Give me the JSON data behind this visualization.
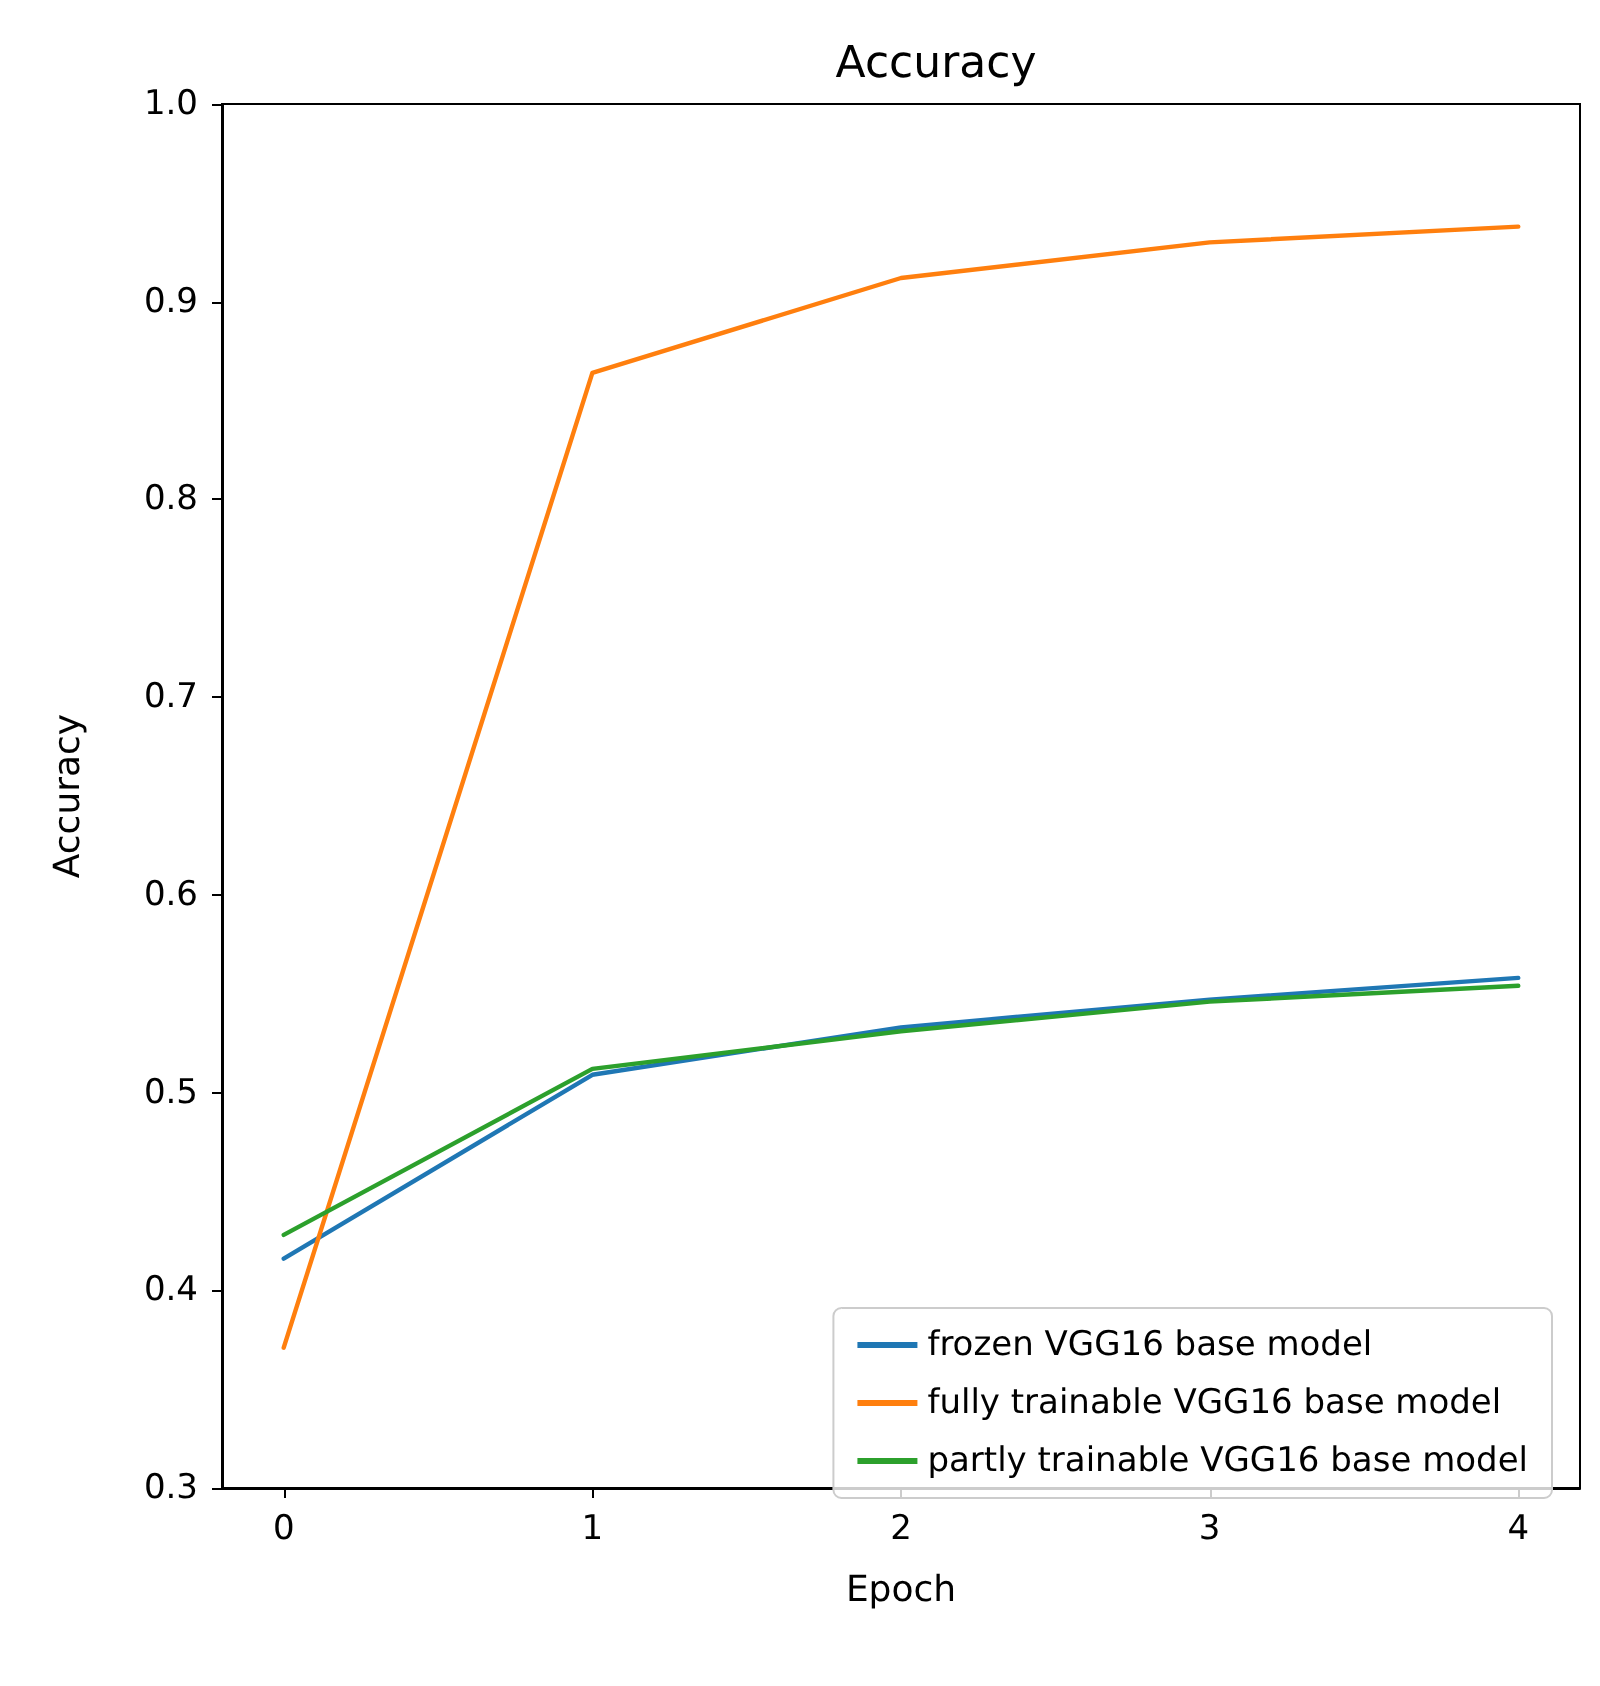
{
  "chart_data": {
    "type": "line",
    "title": "Accuracy",
    "xlabel": "Epoch",
    "ylabel": "Accuracy",
    "x": [
      0,
      1,
      2,
      3,
      4
    ],
    "series": [
      {
        "name": "frozen VGG16 base model",
        "color": "#1f77b4",
        "values": [
          0.416,
          0.509,
          0.533,
          0.547,
          0.558
        ]
      },
      {
        "name": "fully trainable VGG16 base model",
        "color": "#ff7f0e",
        "values": [
          0.371,
          0.864,
          0.912,
          0.93,
          0.938
        ]
      },
      {
        "name": "partly trainable VGG16 base model",
        "color": "#2ca02c",
        "values": [
          0.428,
          0.512,
          0.531,
          0.546,
          0.554
        ]
      }
    ],
    "xlim": [
      -0.2,
      4.2
    ],
    "xticks": [
      0,
      1,
      2,
      3,
      4
    ],
    "ylim": [
      0.3,
      1.0
    ],
    "yticks": [
      0.3,
      0.4,
      0.5,
      0.6,
      0.7,
      0.8,
      0.9,
      {
        "value": 1.0,
        "label": "1.0"
      }
    ],
    "grid": false,
    "legend": "bottom right",
    "marker": "none",
    "line_style": "solid"
  }
}
